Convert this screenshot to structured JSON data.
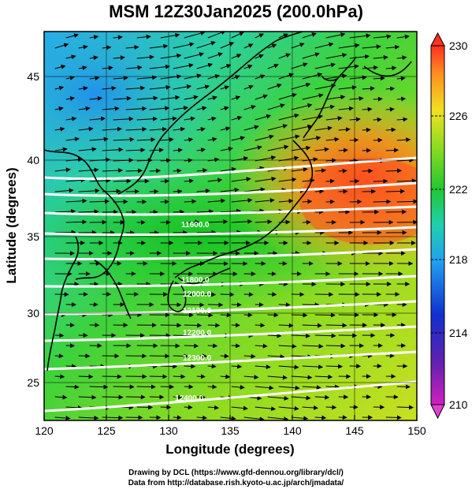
{
  "title": "MSM 12Z30Jan2025 (200.0hPa)",
  "axes": {
    "x_label": "Longitude (degrees)",
    "y_label": "Latitude  (degrees)",
    "x_ticks": [
      "120",
      "125",
      "130",
      "135",
      "140",
      "145",
      "150"
    ],
    "y_ticks": [
      "25",
      "30",
      "35",
      "40",
      "45"
    ]
  },
  "colorbar": {
    "ticks": [
      "210",
      "214",
      "218",
      "222",
      "226",
      "230"
    ],
    "min": 210,
    "max": 230
  },
  "contour_labels": [
    "11600.0",
    "11800.0",
    "12000.0",
    "12100.0",
    "12200.0",
    "12300.0",
    "12400.0"
  ],
  "footer": {
    "line1": "Drawing by DCL (https://www.gfd-dennou.org/library/dcl/)",
    "line2": "Data from http://database.rish.kyoto-u.ac.jp/arch/jmadata/"
  },
  "colors": {
    "field_cold": "#3aa0e8",
    "field_mid": "#22c832",
    "field_warm": "#ff6a1a",
    "contour": "#ffffff",
    "vector": "#000000",
    "coast": "#000000"
  }
}
